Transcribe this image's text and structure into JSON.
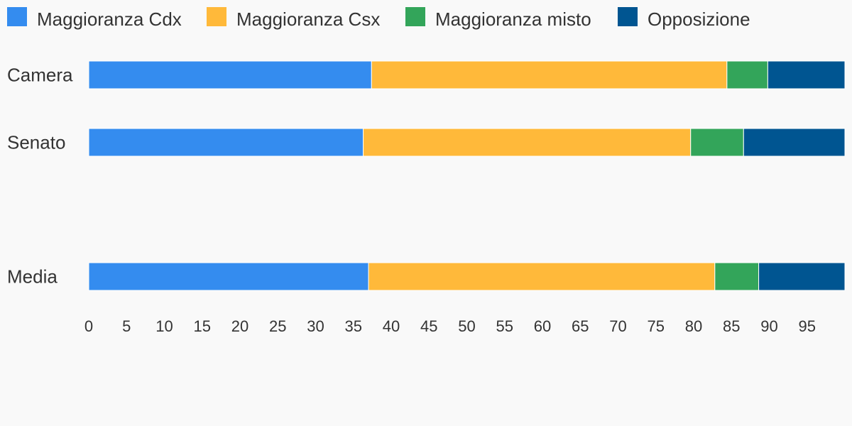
{
  "chart_data": {
    "type": "bar",
    "orientation": "horizontal",
    "stacked": true,
    "categories": [
      "Camera",
      "Senato",
      "",
      "Media"
    ],
    "series": [
      {
        "name": "Maggioranza Cdx",
        "color": "#348cef",
        "values": [
          37.4,
          36.3,
          null,
          37.0
        ]
      },
      {
        "name": "Maggioranza Csx",
        "color": "#ffb93a",
        "values": [
          47.0,
          43.3,
          null,
          45.8
        ]
      },
      {
        "name": "Maggioranza misto",
        "color": "#33a55a",
        "values": [
          5.4,
          7.0,
          null,
          5.8
        ]
      },
      {
        "name": "Opposizione",
        "color": "#005591",
        "values": [
          10.2,
          13.4,
          null,
          11.4
        ]
      }
    ],
    "xlim": [
      0,
      100
    ],
    "x_ticks": [
      0,
      5,
      10,
      15,
      20,
      25,
      30,
      35,
      40,
      45,
      50,
      55,
      60,
      65,
      70,
      75,
      80,
      85,
      90,
      95
    ],
    "legend_position": "top-left",
    "grid": false,
    "title": "",
    "xlabel": "",
    "ylabel": ""
  }
}
